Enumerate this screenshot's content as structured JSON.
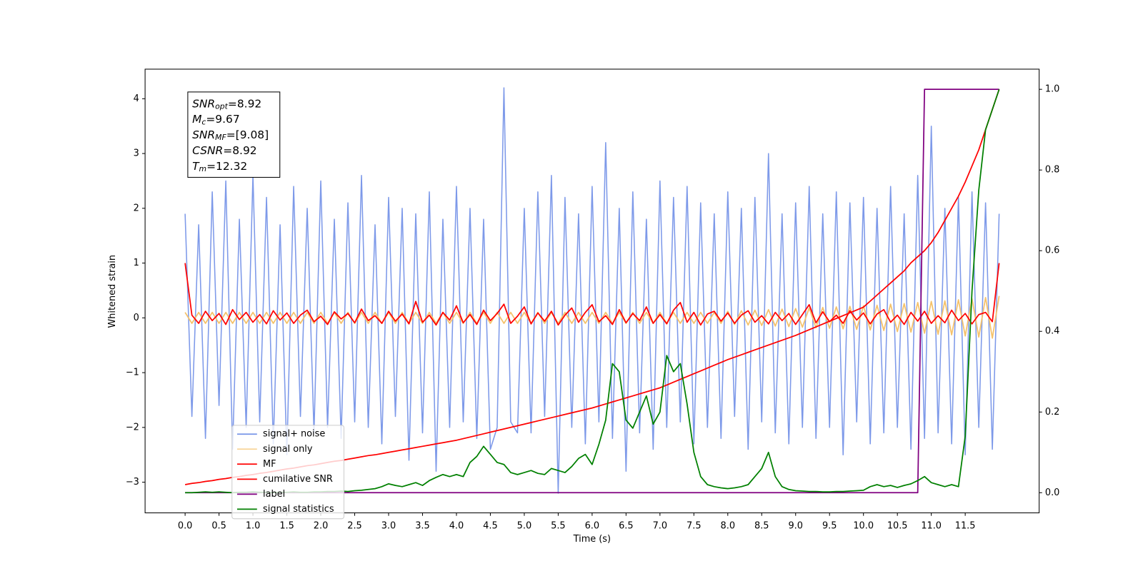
{
  "chart_data": {
    "type": "line",
    "xlabel": "Time (s)",
    "ylabel": "Whitened strain",
    "xlim": [
      -0.59,
      12.59
    ],
    "ylim": [
      -3.56,
      4.54
    ],
    "y2lim": [
      -0.05,
      1.05
    ],
    "xticks": [
      {
        "value": 0,
        "label": "0.0"
      },
      0.5,
      {
        "value": 1,
        "label": "1.0"
      },
      1.5,
      {
        "value": 2,
        "label": "2.0"
      },
      2.5,
      {
        "value": 3,
        "label": "3.0"
      },
      3.5,
      {
        "value": 4,
        "label": "4.0"
      },
      4.5,
      {
        "value": 5,
        "label": "5.0"
      },
      5.5,
      {
        "value": 6,
        "label": "6.0"
      },
      6.5,
      {
        "value": 7,
        "label": "7.0"
      },
      7.5,
      {
        "value": 8,
        "label": "8.0"
      },
      8.5,
      {
        "value": 9,
        "label": "9.0"
      },
      9.5,
      {
        "value": 10,
        "label": "10.0"
      },
      10.5,
      {
        "value": 11,
        "label": "11.0"
      },
      11.5
    ],
    "yticks": [
      {
        "value": -3,
        "label": "−3"
      },
      {
        "value": -2,
        "label": "−2"
      },
      {
        "value": -1,
        "label": "−1"
      },
      0,
      1,
      2,
      3,
      4
    ],
    "y2ticks": [
      {
        "value": 0,
        "label": "0.0"
      },
      0.2,
      0.4,
      0.6,
      0.8,
      {
        "value": 1,
        "label": "1.0"
      }
    ],
    "grid": false,
    "legend_loc": "lower left",
    "annotation": [
      {
        "symbol": "SNR",
        "sub": "opt",
        "text": "=8.92"
      },
      {
        "symbol": "M",
        "sub": "c",
        "text": "=9.67"
      },
      {
        "symbol": "SNR",
        "sub": "MF",
        "text": "=[9.08]"
      },
      {
        "symbol": "CSNR",
        "text": "=8.92"
      },
      {
        "symbol": "T",
        "sub": "m",
        "text": "=12.32"
      }
    ],
    "x": [
      0,
      0.1,
      0.2,
      0.3,
      0.4,
      0.5,
      0.6,
      0.7,
      0.8,
      0.9,
      1,
      1.1,
      1.2,
      1.3,
      1.4,
      1.5,
      1.6,
      1.7,
      1.8,
      1.9,
      2,
      2.1,
      2.2,
      2.3,
      2.4,
      2.5,
      2.6,
      2.7,
      2.8,
      2.9,
      3,
      3.1,
      3.2,
      3.3,
      3.4,
      3.5,
      3.6,
      3.7,
      3.8,
      3.9,
      4,
      4.1,
      4.2,
      4.3,
      4.4,
      4.5,
      4.6,
      4.7,
      4.8,
      4.9,
      5,
      5.1,
      5.2,
      5.3,
      5.4,
      5.5,
      5.6,
      5.7,
      5.8,
      5.9,
      6,
      6.1,
      6.2,
      6.3,
      6.4,
      6.5,
      6.6,
      6.7,
      6.8,
      6.9,
      7,
      7.1,
      7.2,
      7.3,
      7.4,
      7.5,
      7.6,
      7.7,
      7.8,
      7.9,
      8,
      8.1,
      8.2,
      8.3,
      8.4,
      8.5,
      8.6,
      8.7,
      8.8,
      8.9,
      9,
      9.1,
      9.2,
      9.3,
      9.4,
      9.5,
      9.6,
      9.7,
      9.8,
      9.9,
      10,
      10.1,
      10.2,
      10.3,
      10.4,
      10.5,
      10.6,
      10.7,
      10.8,
      10.9,
      11,
      11.1,
      11.2,
      11.3,
      11.4,
      11.5,
      11.6,
      11.7,
      11.8,
      11.9,
      12
    ],
    "series": [
      {
        "name": "signal+ noise",
        "color": "#7694e8",
        "axis": "y",
        "values": [
          1.9,
          -1.8,
          1.7,
          -2.2,
          2.3,
          -1.6,
          2.5,
          -2.4,
          1.8,
          -2.0,
          2.6,
          -1.9,
          2.2,
          -2.3,
          1.7,
          -2.5,
          2.4,
          -1.8,
          2.0,
          -2.1,
          2.5,
          -2.0,
          1.8,
          -2.2,
          2.1,
          -1.9,
          2.6,
          -2.0,
          1.7,
          -2.3,
          2.2,
          -1.8,
          2.0,
          -2.6,
          1.9,
          -2.1,
          2.3,
          -2.8,
          1.8,
          -2.0,
          2.4,
          -1.9,
          2.0,
          -2.2,
          1.8,
          -2.4,
          -2.0,
          4.2,
          -1.9,
          -2.1,
          2.0,
          -2.1,
          2.3,
          -1.8,
          2.6,
          -3.2,
          2.2,
          -2.0,
          1.9,
          -2.3,
          2.4,
          -1.9,
          3.2,
          -2.2,
          2.0,
          -2.8,
          2.3,
          -2.1,
          1.8,
          -2.4,
          2.5,
          -2.0,
          2.2,
          -1.9,
          2.4,
          -2.3,
          2.1,
          -2.0,
          1.9,
          -2.2,
          2.3,
          -1.8,
          2.0,
          -2.4,
          2.2,
          -1.9,
          3.0,
          -2.1,
          1.9,
          -2.3,
          2.1,
          -2.0,
          2.4,
          -2.2,
          1.9,
          -2.0,
          2.3,
          -2.5,
          2.1,
          -1.9,
          2.2,
          -2.3,
          2.0,
          -2.1,
          2.4,
          -2.0,
          1.9,
          -2.4,
          2.6,
          -2.2,
          3.5,
          -2.1,
          2.0,
          -2.3,
          2.2,
          -2.5,
          2.3,
          -2.0,
          2.1,
          -2.4,
          1.9
        ]
      },
      {
        "name": "signal only",
        "color": "#f5c26b",
        "axis": "y",
        "values": [
          0.1,
          -0.1,
          0.1,
          -0.1,
          0.1,
          -0.1,
          0.1,
          -0.1,
          0.1,
          -0.1,
          0.1,
          -0.1,
          0.1,
          -0.1,
          0.1,
          -0.1,
          0.1,
          -0.1,
          0.1,
          -0.1,
          0.1,
          -0.1,
          0.1,
          -0.1,
          0.1,
          -0.1,
          0.1,
          -0.1,
          0.1,
          -0.1,
          0.1,
          -0.1,
          0.1,
          -0.1,
          0.1,
          -0.1,
          0.1,
          -0.1,
          0.1,
          -0.1,
          0.1,
          -0.1,
          0.1,
          -0.1,
          0.1,
          -0.1,
          0.1,
          -0.1,
          0.1,
          -0.1,
          0.1,
          -0.1,
          0.1,
          -0.1,
          0.1,
          -0.1,
          0.1,
          -0.1,
          0.1,
          -0.1,
          0.1,
          -0.1,
          0.1,
          -0.1,
          0.1,
          -0.1,
          0.1,
          -0.1,
          0.1,
          -0.1,
          0.1,
          -0.1,
          0.1,
          -0.1,
          0.1,
          -0.1,
          0.1,
          -0.1,
          0.1,
          -0.1,
          0.12,
          -0.12,
          0.13,
          -0.13,
          0.14,
          -0.14,
          0.15,
          -0.15,
          0.16,
          -0.16,
          0.17,
          -0.17,
          0.18,
          -0.18,
          0.19,
          -0.19,
          0.2,
          -0.2,
          0.21,
          -0.21,
          0.22,
          -0.22,
          0.23,
          -0.23,
          0.25,
          -0.25,
          0.26,
          -0.26,
          0.28,
          -0.28,
          0.3,
          -0.3,
          0.31,
          -0.31,
          0.33,
          -0.33,
          0.35,
          -0.35,
          0.37,
          -0.37,
          0.4
        ]
      },
      {
        "name": "MF",
        "color": "#ff0000",
        "axis": "y",
        "values": [
          1.0,
          0.05,
          -0.1,
          0.12,
          -0.05,
          0.08,
          -0.12,
          0.15,
          -0.03,
          0.1,
          -0.08,
          0.06,
          -0.11,
          0.13,
          -0.04,
          0.09,
          -0.1,
          0.05,
          0.14,
          -0.07,
          0.03,
          -0.12,
          0.11,
          -0.02,
          0.08,
          -0.09,
          0.16,
          -0.05,
          0.04,
          -0.1,
          0.12,
          -0.06,
          0.07,
          -0.11,
          0.3,
          -0.08,
          0.05,
          -0.13,
          0.1,
          -0.04,
          0.22,
          -0.09,
          0.06,
          -0.12,
          0.14,
          -0.05,
          0.08,
          0.25,
          -0.1,
          0.03,
          0.2,
          -0.11,
          0.09,
          -0.06,
          0.12,
          -0.13,
          0.05,
          0.18,
          -0.08,
          0.1,
          0.24,
          -0.07,
          0.04,
          -0.12,
          0.15,
          -0.09,
          0.08,
          -0.05,
          0.2,
          -0.1,
          0.06,
          -0.11,
          0.14,
          0.28,
          -0.08,
          0.1,
          -0.13,
          0.07,
          0.12,
          -0.06,
          0.09,
          -0.1,
          0.05,
          0.13,
          -0.08,
          0.04,
          -0.11,
          0.1,
          -0.05,
          0.08,
          -0.12,
          0.06,
          0.24,
          -0.09,
          0.11,
          -0.07,
          0.05,
          -0.1,
          0.13,
          -0.04,
          0.09,
          -0.11,
          0.07,
          0.15,
          -0.08,
          0.05,
          -0.12,
          0.1,
          -0.06,
          0.12,
          -0.1,
          0.04,
          -0.09,
          0.14,
          -0.05,
          0.08,
          -0.11,
          0.06,
          0.1,
          -0.07,
          1.0
        ]
      },
      {
        "name": "cumilative SNR",
        "color": "#ff0000",
        "axis": "y2",
        "values": [
          0.02,
          0.023,
          0.025,
          0.028,
          0.03,
          0.033,
          0.035,
          0.038,
          0.04,
          0.043,
          0.045,
          0.048,
          0.05,
          0.053,
          0.056,
          0.059,
          0.061,
          0.064,
          0.067,
          0.069,
          0.072,
          0.075,
          0.078,
          0.08,
          0.083,
          0.086,
          0.089,
          0.092,
          0.094,
          0.097,
          0.1,
          0.103,
          0.106,
          0.109,
          0.112,
          0.115,
          0.118,
          0.121,
          0.124,
          0.127,
          0.13,
          0.134,
          0.138,
          0.142,
          0.146,
          0.15,
          0.154,
          0.158,
          0.162,
          0.166,
          0.17,
          0.174,
          0.178,
          0.182,
          0.186,
          0.19,
          0.194,
          0.198,
          0.202,
          0.206,
          0.21,
          0.215,
          0.22,
          0.225,
          0.23,
          0.235,
          0.24,
          0.245,
          0.25,
          0.255,
          0.26,
          0.267,
          0.274,
          0.281,
          0.288,
          0.295,
          0.302,
          0.309,
          0.316,
          0.323,
          0.33,
          0.336,
          0.342,
          0.348,
          0.354,
          0.36,
          0.366,
          0.372,
          0.378,
          0.384,
          0.39,
          0.397,
          0.404,
          0.411,
          0.418,
          0.425,
          0.432,
          0.439,
          0.446,
          0.453,
          0.46,
          0.475,
          0.49,
          0.505,
          0.52,
          0.535,
          0.55,
          0.57,
          0.585,
          0.6,
          0.62,
          0.645,
          0.675,
          0.705,
          0.735,
          0.77,
          0.81,
          0.85,
          0.9,
          0.95,
          1.0
        ]
      },
      {
        "name": "label",
        "color": "#800080",
        "axis": "y2",
        "values": [
          0,
          0,
          0,
          0,
          0,
          0,
          0,
          0,
          0,
          0,
          0,
          0,
          0,
          0,
          0,
          0,
          0,
          0,
          0,
          0,
          0,
          0,
          0,
          0,
          0,
          0,
          0,
          0,
          0,
          0,
          0,
          0,
          0,
          0,
          0,
          0,
          0,
          0,
          0,
          0,
          0,
          0,
          0,
          0,
          0,
          0,
          0,
          0,
          0,
          0,
          0,
          0,
          0,
          0,
          0,
          0,
          0,
          0,
          0,
          0,
          0,
          0,
          0,
          0,
          0,
          0,
          0,
          0,
          0,
          0,
          0,
          0,
          0,
          0,
          0,
          0,
          0,
          0,
          0,
          0,
          0,
          0,
          0,
          0,
          0,
          0,
          0,
          0,
          0,
          0,
          0,
          0,
          0,
          0,
          0,
          0,
          0,
          0,
          0,
          0,
          0,
          0,
          0,
          0,
          0,
          0,
          0,
          0,
          0,
          1,
          1,
          1,
          1,
          1,
          1,
          1,
          1,
          1,
          1,
          1,
          1
        ]
      },
      {
        "name": "signal statistics",
        "color": "#008000",
        "axis": "y2",
        "values": [
          0.0,
          0.0,
          0.001,
          0.002,
          0.001,
          0.002,
          0.001,
          0.0,
          0.001,
          0.001,
          0.002,
          0.001,
          0.001,
          0.0,
          0.001,
          0.001,
          0.002,
          0.001,
          0.001,
          0.002,
          0.002,
          0.003,
          0.003,
          0.004,
          0.003,
          0.005,
          0.006,
          0.008,
          0.01,
          0.015,
          0.022,
          0.018,
          0.015,
          0.02,
          0.025,
          0.018,
          0.03,
          0.038,
          0.045,
          0.04,
          0.045,
          0.04,
          0.075,
          0.09,
          0.115,
          0.095,
          0.075,
          0.07,
          0.05,
          0.045,
          0.05,
          0.055,
          0.048,
          0.045,
          0.06,
          0.055,
          0.05,
          0.065,
          0.085,
          0.095,
          0.07,
          0.12,
          0.18,
          0.32,
          0.3,
          0.18,
          0.16,
          0.2,
          0.24,
          0.17,
          0.2,
          0.34,
          0.3,
          0.32,
          0.22,
          0.1,
          0.04,
          0.02,
          0.015,
          0.012,
          0.01,
          0.012,
          0.015,
          0.02,
          0.04,
          0.06,
          0.1,
          0.04,
          0.015,
          0.008,
          0.005,
          0.004,
          0.003,
          0.003,
          0.002,
          0.002,
          0.003,
          0.003,
          0.004,
          0.005,
          0.006,
          0.015,
          0.02,
          0.015,
          0.018,
          0.013,
          0.018,
          0.022,
          0.03,
          0.04,
          0.025,
          0.02,
          0.015,
          0.02,
          0.015,
          0.14,
          0.5,
          0.75,
          0.9,
          0.95,
          1.0
        ]
      }
    ]
  }
}
